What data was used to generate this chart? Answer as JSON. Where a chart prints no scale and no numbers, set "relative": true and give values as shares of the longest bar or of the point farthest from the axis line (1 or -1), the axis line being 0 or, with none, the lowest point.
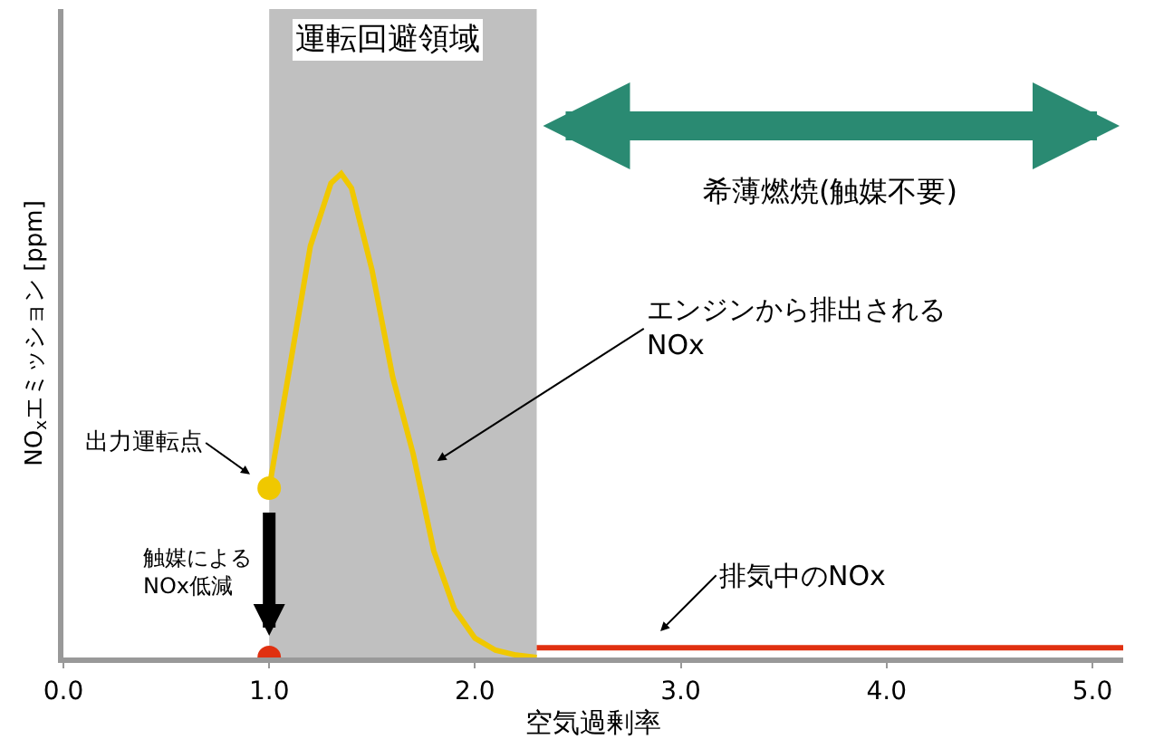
{
  "chart_data": {
    "type": "line",
    "relative": true,
    "xlabel": "空気過剰率",
    "ylabel": "NO$_{x}$エミッション [ppm]",
    "xlim": [
      0,
      5.15
    ],
    "xticks": [
      {
        "value": 0,
        "label": "0.0"
      },
      {
        "value": 1,
        "label": "1.0"
      },
      {
        "value": 2,
        "label": "2.0"
      },
      {
        "value": 3,
        "label": "3.0"
      },
      {
        "value": 4,
        "label": "4.0"
      },
      {
        "value": 5,
        "label": "5.0"
      }
    ],
    "tick_labels": "x",
    "series": [
      {
        "color": "#f0c800",
        "marker": "none",
        "x": [
          1.0,
          1.1,
          1.2,
          1.3,
          1.35,
          1.4,
          1.5,
          1.6,
          1.7,
          1.8,
          1.9,
          2.0,
          2.1,
          2.2,
          2.3
        ],
        "values": [
          0.35,
          0.6,
          0.85,
          0.98,
          1.0,
          0.97,
          0.8,
          0.58,
          0.42,
          0.22,
          0.1,
          0.04,
          0.015,
          0.005,
          0.0
        ]
      },
      {
        "color": "#e03010",
        "marker": "none",
        "x": [
          2.3,
          5.15
        ],
        "values": [
          0.02,
          0.02
        ]
      },
      {
        "type": "scatter",
        "color": "#f0c800",
        "marker": "circle",
        "x": [
          1.0
        ],
        "values": [
          0.35
        ]
      },
      {
        "type": "scatter",
        "color": "#e03010",
        "marker": "circle",
        "x": [
          1.0
        ],
        "values": [
          0.0
        ]
      }
    ],
    "bands": [
      {
        "axis": "x",
        "from": 1.0,
        "to": 2.3,
        "label": "運転回避領域",
        "color": "#c0c0c0"
      }
    ],
    "annotations": [
      {
        "text": "出力運転点",
        "x": 1.0,
        "y": 0.35
      },
      {
        "text": "エンジンから排出される\nNOx",
        "x": 1.72,
        "y": 0.38
      },
      {
        "text": "排気中のNOx",
        "x": 2.82,
        "y": 0.02
      },
      {
        "text": "触媒による\nNOx低減",
        "x": 1.0,
        "y": 0.0
      },
      "希薄燃焼(触媒不要)"
    ]
  }
}
